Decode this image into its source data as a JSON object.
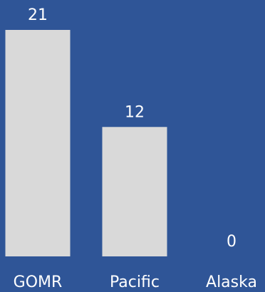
{
  "chart_data": {
    "type": "bar",
    "categories": [
      "GOMR",
      "Pacific",
      "Alaska"
    ],
    "values": [
      21,
      12,
      0
    ],
    "ylim": [
      0,
      21
    ],
    "grid": false,
    "title": "",
    "xlabel": "",
    "ylabel": ""
  },
  "colors": {
    "background": "#2f5597",
    "bar": "#d9d9d9",
    "text": "#ffffff"
  }
}
